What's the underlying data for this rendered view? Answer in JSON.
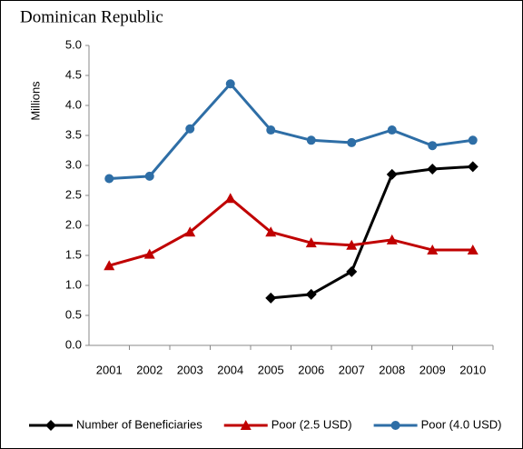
{
  "chart_data": {
    "type": "line",
    "title": "Dominican Republic",
    "y_label": "Millions",
    "categories": [
      "2001",
      "2002",
      "2003",
      "2004",
      "2005",
      "2006",
      "2007",
      "2008",
      "2009",
      "2010"
    ],
    "series": [
      {
        "name": "Number of Beneficiaries",
        "color": "#000000",
        "marker": "diamond",
        "values": [
          null,
          null,
          null,
          null,
          0.79,
          0.85,
          1.23,
          2.85,
          2.94,
          2.98
        ]
      },
      {
        "name": "Poor (2.5 USD)",
        "color": "#c00000",
        "marker": "triangle",
        "values": [
          1.33,
          1.52,
          1.89,
          2.45,
          1.89,
          1.71,
          1.67,
          1.76,
          1.59,
          1.59
        ]
      },
      {
        "name": "Poor (4.0 USD)",
        "color": "#2e6ea6",
        "marker": "circle",
        "values": [
          2.78,
          2.82,
          3.61,
          4.36,
          3.59,
          3.42,
          3.38,
          3.59,
          3.33,
          3.42
        ]
      }
    ],
    "ylim": [
      0,
      5
    ],
    "yticks": [
      {
        "value": 0,
        "label": "0.0"
      },
      0.5,
      {
        "value": 1,
        "label": "1.0"
      },
      1.5,
      {
        "value": 2,
        "label": "2.0"
      },
      2.5,
      {
        "value": 3,
        "label": "3.0"
      },
      3.5,
      {
        "value": 4,
        "label": "4.0"
      },
      4.5,
      {
        "value": 5,
        "label": "5.0"
      }
    ],
    "legend": "bottom"
  }
}
